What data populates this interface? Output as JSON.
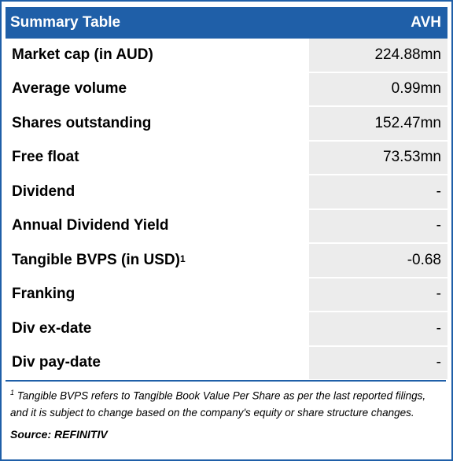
{
  "header": {
    "title": "Summary Table",
    "ticker": "AVH"
  },
  "rows": [
    {
      "label": "Market cap (in AUD)",
      "value": "224.88mn"
    },
    {
      "label": "Average volume",
      "value": "0.99mn"
    },
    {
      "label": "Shares outstanding",
      "value": "152.47mn"
    },
    {
      "label": "Free float",
      "value": "73.53mn"
    },
    {
      "label": "Dividend",
      "value": "-"
    },
    {
      "label": "Annual Dividend Yield",
      "value": "-"
    },
    {
      "label": "Tangible BVPS (in USD)",
      "superscript": "1",
      "value": "-0.68"
    },
    {
      "label": "Franking",
      "value": "-"
    },
    {
      "label": "Div ex-date",
      "value": "-"
    },
    {
      "label": "Div pay-date",
      "value": "-"
    }
  ],
  "footnote": {
    "marker": "1",
    "text": "Tangible BVPS refers to Tangible Book Value Per Share as per the last reported filings, and it is subject to change based on the company's equity or share structure changes."
  },
  "source": "Source: REFINITIV",
  "colors": {
    "header_bg": "#1f5fa8",
    "value_bg": "#ececec"
  }
}
